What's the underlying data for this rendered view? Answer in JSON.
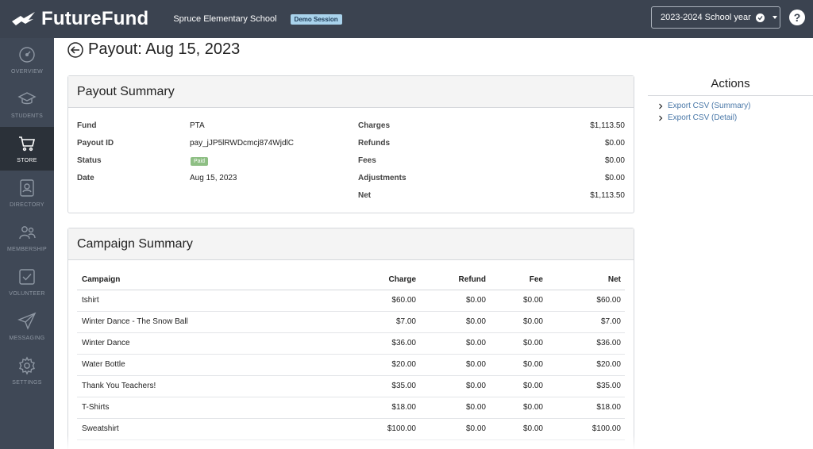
{
  "header": {
    "brand": "FutureFund",
    "school": "Spruce Elementary School",
    "demo_badge": "Demo Session",
    "year_select": "2023-2024 School year",
    "help": "?"
  },
  "sidebar": {
    "items": [
      {
        "label": "OVERVIEW",
        "icon": "gauge-icon"
      },
      {
        "label": "STUDENTS",
        "icon": "graduation-cap-icon"
      },
      {
        "label": "STORE",
        "icon": "cart-icon",
        "active": true
      },
      {
        "label": "DIRECTORY",
        "icon": "directory-icon"
      },
      {
        "label": "MEMBERSHIP",
        "icon": "people-icon"
      },
      {
        "label": "VOLUNTEER",
        "icon": "checkbox-icon"
      },
      {
        "label": "MESSAGING",
        "icon": "paper-plane-icon"
      },
      {
        "label": "SETTINGS",
        "icon": "gear-icon"
      }
    ]
  },
  "page": {
    "title": "Payout: Aug 15, 2023"
  },
  "payout_summary": {
    "title": "Payout Summary",
    "fund_label": "Fund",
    "fund_value": "PTA",
    "payout_id_label": "Payout ID",
    "payout_id_value": "pay_jJP5lRWDcmcj874WjdlC",
    "status_label": "Status",
    "status_value": "Paid",
    "date_label": "Date",
    "date_value": "Aug 15, 2023",
    "charges_label": "Charges",
    "charges_value": "$1,113.50",
    "refunds_label": "Refunds",
    "refunds_value": "$0.00",
    "fees_label": "Fees",
    "fees_value": "$0.00",
    "adjustments_label": "Adjustments",
    "adjustments_value": "$0.00",
    "net_label": "Net",
    "net_value": "$1,113.50"
  },
  "campaign_summary": {
    "title": "Campaign Summary",
    "columns": [
      "Campaign",
      "Charge",
      "Refund",
      "Fee",
      "Net"
    ],
    "rows": [
      [
        "tshirt",
        "$60.00",
        "$0.00",
        "$0.00",
        "$60.00"
      ],
      [
        "Winter Dance - The Snow Ball",
        "$7.00",
        "$0.00",
        "$0.00",
        "$7.00"
      ],
      [
        "Winter Dance",
        "$36.00",
        "$0.00",
        "$0.00",
        "$36.00"
      ],
      [
        "Water Bottle",
        "$20.00",
        "$0.00",
        "$0.00",
        "$20.00"
      ],
      [
        "Thank You Teachers!",
        "$35.00",
        "$0.00",
        "$0.00",
        "$35.00"
      ],
      [
        "T-Shirts",
        "$18.00",
        "$0.00",
        "$0.00",
        "$18.00"
      ],
      [
        "Sweatshirt",
        "$100.00",
        "$0.00",
        "$0.00",
        "$100.00"
      ]
    ]
  },
  "actions": {
    "title": "Actions",
    "links": [
      "Export CSV (Summary)",
      "Export CSV (Detail)"
    ]
  },
  "colors": {
    "header_bg": "#3b4350",
    "sidebar_bg": "#3f4856",
    "sidebar_active": "#2b3139",
    "link": "#4a78a8",
    "paid_badge": "#8ebf84",
    "demo_badge": "#a9d3ec"
  }
}
